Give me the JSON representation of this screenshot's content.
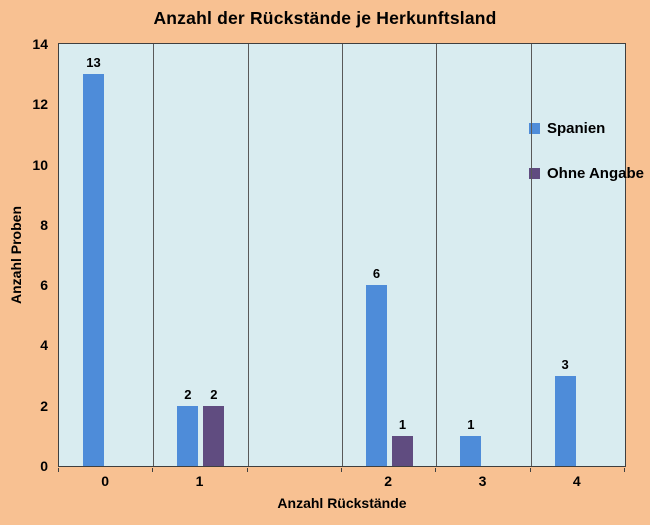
{
  "chart_data": {
    "type": "bar",
    "title": "Anzahl der Rückstände je Herkunftsland",
    "xlabel": "Anzahl Rückstände",
    "ylabel": "Anzahl Proben",
    "categories": [
      "0",
      "1",
      "",
      "2",
      "3",
      "4"
    ],
    "series": [
      {
        "name": "Spanien",
        "color": "#4E8CD9",
        "values": [
          13,
          2,
          null,
          6,
          1,
          3
        ]
      },
      {
        "name": "Ohne Angabe",
        "color": "#604C80",
        "values": [
          null,
          2,
          null,
          1,
          null,
          null
        ]
      }
    ],
    "ylim": [
      0,
      14
    ],
    "ytick_step": 2,
    "grid": "vertical-category-separators-only",
    "legend_position": "inside-top-right",
    "data_labels": true
  },
  "colors": {
    "background": "#F8C192",
    "plot_background": "#D9ECF0",
    "gridline": "#595959",
    "plot_border": "#3F3F3F",
    "text": "#000000"
  }
}
